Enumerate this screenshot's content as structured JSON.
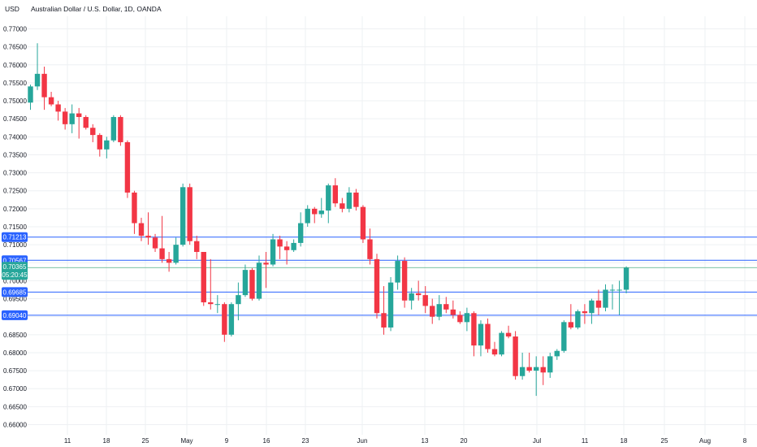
{
  "header": {
    "currency_label": "USD",
    "title": "Australian Dollar / U.S. Dollar, 1D, OANDA"
  },
  "colors": {
    "up": "#26a69a",
    "down": "#f23645",
    "hline": "#2962ff",
    "price_line": "#4caf82",
    "grid": "#eef0f3",
    "tag_bg": "#2962ff",
    "price_tag_bg": "#26a69a"
  },
  "chart_data": {
    "type": "candlestick",
    "ylim": [
      0.658,
      0.7775
    ],
    "y_ticks": [
      "0.77000",
      "0.76500",
      "0.76000",
      "0.75500",
      "0.75000",
      "0.74500",
      "0.74000",
      "0.73500",
      "0.73000",
      "0.72500",
      "0.72000",
      "0.71500",
      "0.71000",
      "0.70500",
      "0.70000",
      "0.69500",
      "0.69000",
      "0.68500",
      "0.68000",
      "0.67500",
      "0.67000",
      "0.66500",
      "0.66000"
    ],
    "x_ticks": [
      "11",
      "18",
      "25",
      "May",
      "9",
      "16",
      "23",
      "Jun",
      "13",
      "20",
      "Jul",
      "11",
      "18",
      "25",
      "Aug",
      "8"
    ],
    "candles": [
      [
        0.7495,
        0.7545,
        0.7475,
        0.754
      ],
      [
        0.754,
        0.766,
        0.753,
        0.7575
      ],
      [
        0.7575,
        0.7595,
        0.7475,
        0.751
      ],
      [
        0.751,
        0.7525,
        0.7485,
        0.749
      ],
      [
        0.749,
        0.75,
        0.7445,
        0.747
      ],
      [
        0.747,
        0.748,
        0.742,
        0.7435
      ],
      [
        0.7435,
        0.749,
        0.741,
        0.7465
      ],
      [
        0.7465,
        0.748,
        0.7395,
        0.7455
      ],
      [
        0.7455,
        0.746,
        0.742,
        0.7425
      ],
      [
        0.7425,
        0.7435,
        0.7385,
        0.7405
      ],
      [
        0.7405,
        0.741,
        0.7345,
        0.7365
      ],
      [
        0.7365,
        0.74,
        0.734,
        0.739
      ],
      [
        0.739,
        0.746,
        0.7385,
        0.7455
      ],
      [
        0.7455,
        0.746,
        0.7375,
        0.7385
      ],
      [
        0.7385,
        0.739,
        0.723,
        0.7245
      ],
      [
        0.7245,
        0.725,
        0.713,
        0.716
      ],
      [
        0.716,
        0.7175,
        0.711,
        0.7125
      ],
      [
        0.7125,
        0.719,
        0.71,
        0.712
      ],
      [
        0.712,
        0.713,
        0.708,
        0.709
      ],
      [
        0.709,
        0.718,
        0.705,
        0.706
      ],
      [
        0.706,
        0.708,
        0.7025,
        0.705
      ],
      [
        0.705,
        0.712,
        0.7045,
        0.71
      ],
      [
        0.71,
        0.727,
        0.7095,
        0.726
      ],
      [
        0.726,
        0.727,
        0.71,
        0.711
      ],
      [
        0.711,
        0.7125,
        0.706,
        0.708
      ],
      [
        0.708,
        0.708,
        0.693,
        0.694
      ],
      [
        0.694,
        0.706,
        0.692,
        0.6935
      ],
      [
        0.6935,
        0.696,
        0.691,
        0.6935
      ],
      [
        0.6935,
        0.694,
        0.683,
        0.685
      ],
      [
        0.685,
        0.694,
        0.6845,
        0.6935
      ],
      [
        0.6935,
        0.6995,
        0.689,
        0.696
      ],
      [
        0.696,
        0.7045,
        0.6955,
        0.703
      ],
      [
        0.703,
        0.7035,
        0.6945,
        0.695
      ],
      [
        0.695,
        0.707,
        0.6945,
        0.705
      ],
      [
        0.705,
        0.708,
        0.698,
        0.7045
      ],
      [
        0.7045,
        0.713,
        0.704,
        0.7115
      ],
      [
        0.7115,
        0.7125,
        0.706,
        0.7095
      ],
      [
        0.7095,
        0.711,
        0.7045,
        0.7085
      ],
      [
        0.7085,
        0.7115,
        0.708,
        0.7105
      ],
      [
        0.7105,
        0.719,
        0.7095,
        0.716
      ],
      [
        0.716,
        0.721,
        0.715,
        0.72
      ],
      [
        0.72,
        0.7205,
        0.716,
        0.7185
      ],
      [
        0.7185,
        0.723,
        0.7175,
        0.7195
      ],
      [
        0.7195,
        0.727,
        0.716,
        0.7265
      ],
      [
        0.7265,
        0.7285,
        0.7205,
        0.7215
      ],
      [
        0.7215,
        0.723,
        0.719,
        0.72
      ],
      [
        0.72,
        0.726,
        0.719,
        0.7245
      ],
      [
        0.7245,
        0.7255,
        0.7195,
        0.7205
      ],
      [
        0.7205,
        0.721,
        0.7105,
        0.7115
      ],
      [
        0.7115,
        0.7145,
        0.7045,
        0.706
      ],
      [
        0.706,
        0.7075,
        0.6895,
        0.691
      ],
      [
        0.691,
        0.6985,
        0.685,
        0.687
      ],
      [
        0.687,
        0.701,
        0.686,
        0.6995
      ],
      [
        0.6995,
        0.707,
        0.6975,
        0.7055
      ],
      [
        0.7055,
        0.7065,
        0.6925,
        0.6945
      ],
      [
        0.6945,
        0.698,
        0.692,
        0.6965
      ],
      [
        0.6965,
        0.7,
        0.6945,
        0.696
      ],
      [
        0.696,
        0.6985,
        0.691,
        0.693
      ],
      [
        0.693,
        0.695,
        0.688,
        0.69
      ],
      [
        0.69,
        0.696,
        0.689,
        0.6935
      ],
      [
        0.6935,
        0.6955,
        0.691,
        0.692
      ],
      [
        0.692,
        0.6945,
        0.6895,
        0.6905
      ],
      [
        0.6905,
        0.6915,
        0.688,
        0.6885
      ],
      [
        0.6885,
        0.6925,
        0.686,
        0.691
      ],
      [
        0.691,
        0.6915,
        0.679,
        0.682
      ],
      [
        0.682,
        0.689,
        0.679,
        0.688
      ],
      [
        0.688,
        0.6895,
        0.68,
        0.681
      ],
      [
        0.681,
        0.683,
        0.679,
        0.6795
      ],
      [
        0.6795,
        0.686,
        0.679,
        0.6855
      ],
      [
        0.6855,
        0.6875,
        0.684,
        0.6845
      ],
      [
        0.6845,
        0.686,
        0.6725,
        0.6735
      ],
      [
        0.6735,
        0.68,
        0.6725,
        0.676
      ],
      [
        0.676,
        0.68,
        0.6745,
        0.675
      ],
      [
        0.675,
        0.679,
        0.668,
        0.676
      ],
      [
        0.676,
        0.679,
        0.671,
        0.6745
      ],
      [
        0.6745,
        0.68,
        0.673,
        0.679
      ],
      [
        0.679,
        0.681,
        0.678,
        0.6805
      ],
      [
        0.6805,
        0.689,
        0.68,
        0.6885
      ],
      [
        0.6885,
        0.6935,
        0.6865,
        0.687
      ],
      [
        0.687,
        0.692,
        0.6865,
        0.6915
      ],
      [
        0.6915,
        0.6935,
        0.688,
        0.691
      ],
      [
        0.691,
        0.695,
        0.688,
        0.6945
      ],
      [
        0.6945,
        0.6975,
        0.6905,
        0.6925
      ],
      [
        0.6925,
        0.699,
        0.6915,
        0.6975
      ],
      [
        0.6975,
        0.699,
        0.692,
        0.6975
      ],
      [
        0.6975,
        0.7,
        0.6905,
        0.6975
      ],
      [
        0.6975,
        0.704,
        0.6965,
        0.7036
      ]
    ],
    "horizontal_levels": [
      {
        "value": 0.71213,
        "label": "0.71213"
      },
      {
        "value": 0.70567,
        "label": "0.70567"
      },
      {
        "value": 0.69685,
        "label": "0.69685"
      },
      {
        "value": 0.6904,
        "label": "0.69040"
      }
    ],
    "last_price": {
      "value": 0.70365,
      "label": "0.70365",
      "countdown": "05:20:45"
    }
  }
}
